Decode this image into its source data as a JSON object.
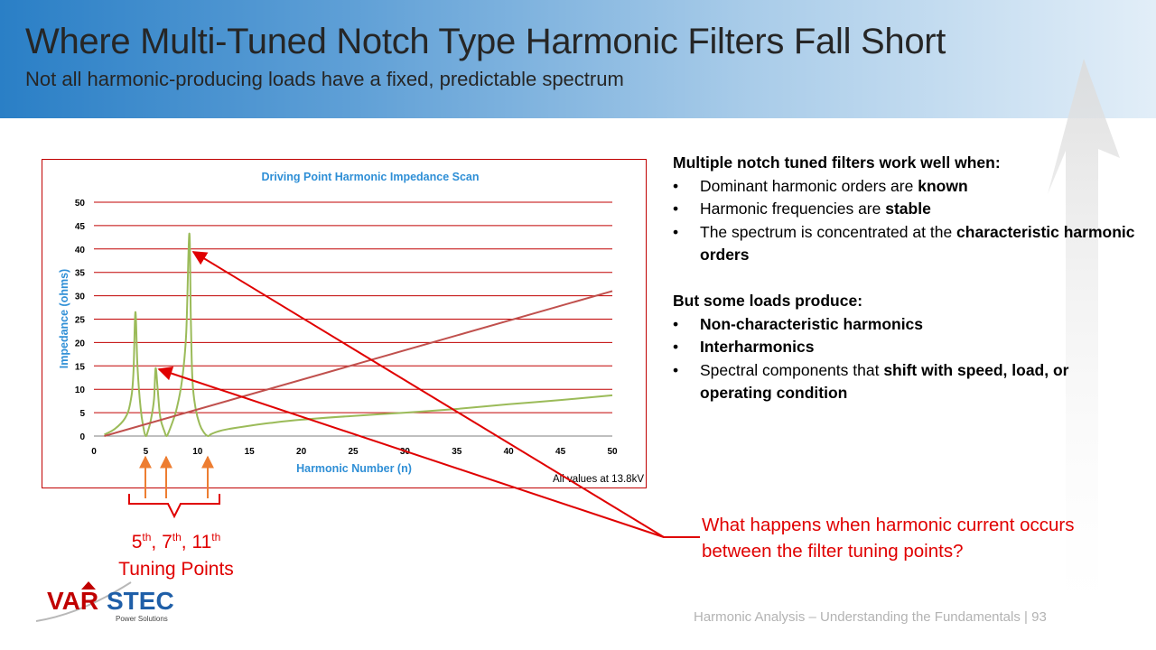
{
  "slide": {
    "title": "Where Multi-Tuned Notch Type Harmonic Filters Fall Short",
    "subtitle": "Not all harmonic-producing loads have a fixed, predictable spectrum",
    "footer": "Harmonic Analysis – Understanding the Fundamentals",
    "page_number": "| 93"
  },
  "colors": {
    "accent_red": "#e00000",
    "header_blue": "#2a7fc6",
    "chart_title_blue": "#2f8fd6",
    "filtered_impedance": "#9bbb59",
    "unfiltered_impedance": "#c0504d",
    "gridline": "#c00000"
  },
  "chart_data": {
    "type": "line",
    "title": "Driving Point Harmonic Impedance Scan",
    "xlabel": "Harmonic Number (n)",
    "ylabel": "Impedance (ohms)",
    "xlim": [
      0,
      50
    ],
    "ylim": [
      0,
      50
    ],
    "x_ticks": [
      0,
      5,
      10,
      15,
      20,
      25,
      30,
      35,
      40,
      45,
      50
    ],
    "y_ticks": [
      0,
      5,
      10,
      15,
      20,
      25,
      30,
      35,
      40,
      45,
      50
    ],
    "grid": "horizontal",
    "annotation": "All values at 13.8kV",
    "series": [
      {
        "color": "#9bbb59",
        "x": [
          1,
          2,
          3,
          3.5,
          3.8,
          4.0,
          4.2,
          4.5,
          4.8,
          5.0,
          5.2,
          5.5,
          5.8,
          5.95,
          6.15,
          6.4,
          6.8,
          7.0,
          7.2,
          7.5,
          8.0,
          8.5,
          8.9,
          9.2,
          9.35,
          9.5,
          9.8,
          10.2,
          10.6,
          11.0,
          11.3,
          12,
          13,
          15,
          17,
          20,
          25,
          30,
          35,
          40,
          45,
          50
        ],
        "y": [
          0.3,
          1.5,
          3.8,
          7.0,
          13.0,
          26.5,
          15.0,
          6.0,
          1.5,
          0.0,
          1.0,
          3.5,
          8.0,
          14.5,
          10.0,
          4.0,
          1.0,
          0.0,
          0.8,
          2.5,
          6.0,
          12.0,
          22.0,
          43.3,
          25.0,
          12.0,
          6.0,
          2.5,
          0.8,
          0.0,
          0.4,
          1.0,
          1.5,
          2.2,
          2.8,
          3.5,
          4.3,
          5.0,
          5.8,
          6.8,
          7.7,
          8.7
        ]
      },
      {
        "color": "#c0504d",
        "x": [
          1,
          50
        ],
        "y": [
          0.0,
          31.0
        ]
      }
    ]
  },
  "content": {
    "intro_heading": "Multiple notch tuned filters work well when:",
    "works_well": [
      {
        "pre": "Dominant harmonic orders are ",
        "bold": "known"
      },
      {
        "pre": "Harmonic frequencies are ",
        "bold": "stable"
      },
      {
        "pre": "The spectrum is concentrated at the ",
        "bold": "characteristic harmonic orders"
      }
    ],
    "problem_heading": "But some loads produce:",
    "problems": [
      {
        "pre": "",
        "bold": "Non-characteristic harmonics"
      },
      {
        "pre": "",
        "bold": "Interharmonics"
      },
      {
        "pre": "Spectral components that ",
        "bold": "shift with speed, load, or operating condition"
      }
    ],
    "question": "What happens when harmonic current occurs between the filter tuning points?",
    "tuning": {
      "n1": "5",
      "s1": "th",
      "sep1": ", ",
      "n2": "7",
      "s2": "th",
      "sep2": ", ",
      "n3": "11",
      "s3": "th",
      "label": "Tuning Points"
    }
  },
  "logo": {
    "name_part1": "VAR",
    "name_part2": "STEC",
    "tagline": "Power Solutions"
  }
}
